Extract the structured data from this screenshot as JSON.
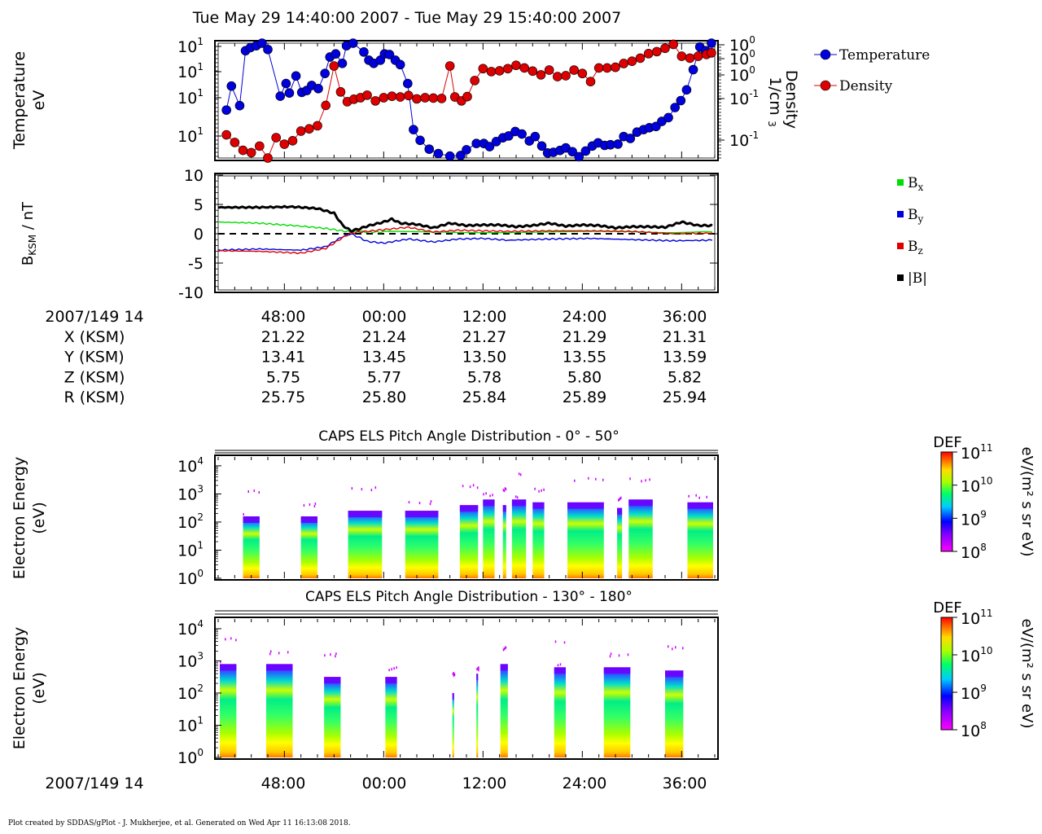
{
  "figure": {
    "title": "Tue May 29 14:40:00 2007 - Tue May 29 15:40:00 2007",
    "footer": "Plot created by SDDAS/gPlot - J. Mukherjee, et al.  Generated on Wed Apr 11 16:13:08 2018."
  },
  "time_axis": {
    "tick_labels": [
      "48:00",
      "00:00",
      "12:00",
      "24:00",
      "36:00"
    ],
    "start_label": "2007/149 14"
  },
  "ephemeris": {
    "rows": [
      {
        "label": "X (KSM)",
        "values": [
          "21.22",
          "21.24",
          "21.27",
          "21.29",
          "21.31"
        ]
      },
      {
        "label": "Y (KSM)",
        "values": [
          "13.41",
          "13.45",
          "13.50",
          "13.55",
          "13.59"
        ]
      },
      {
        "label": "Z (KSM)",
        "values": [
          "5.75",
          "5.77",
          "5.78",
          "5.80",
          "5.82"
        ]
      },
      {
        "label": "R (KSM)",
        "values": [
          "25.75",
          "25.80",
          "25.84",
          "25.89",
          "25.94"
        ]
      }
    ]
  },
  "chart_data": [
    {
      "type": "scatter",
      "title": "",
      "ylabel": [
        "Temperature",
        "eV"
      ],
      "y2label": [
        "Density",
        "1/cm",
        "3"
      ],
      "yscale": "log",
      "left_tick_labels": [
        "10",
        "10",
        "10",
        "10"
      ],
      "left_tick_exponents": [
        "1",
        "1",
        "1",
        "1"
      ],
      "right_tick_labels": [
        "10",
        "10",
        "10",
        "10",
        "10"
      ],
      "right_tick_exponents": [
        "0",
        "0",
        "0",
        "-1",
        "-1"
      ],
      "legend_position": "right",
      "series": [
        {
          "name": "Temperature",
          "color": "#0000dd",
          "x": [
            1.0,
            1.6,
            2.6,
            3.3,
            3.9,
            4.6,
            5.3,
            6.0,
            7.5,
            8.2,
            8.6,
            9.4,
            10.1,
            10.7,
            11.3,
            12.1,
            12.9,
            13.5,
            14.2,
            15.0,
            15.5,
            16.3,
            17.6,
            18.2,
            18.8,
            19.6,
            20.1,
            20.7,
            21.4,
            22.0,
            22.9,
            23.6,
            24.4,
            25.5,
            26.6,
            28.0,
            29.3,
            30.0,
            31.2,
            32.1,
            32.8,
            33.6,
            34.4,
            35.1,
            35.9,
            36.7,
            37.6,
            38.3,
            39.1,
            39.8,
            40.5,
            41.3,
            42.0,
            42.8,
            43.6,
            44.4,
            45.2,
            45.9,
            46.7,
            47.4,
            48.3,
            49.0,
            49.8,
            50.6,
            51.4,
            52.1,
            52.9,
            53.6,
            54.4,
            55.2,
            55.9,
            56.6,
            57.4,
            58.2,
            58.9,
            59.6
          ],
          "y": [
            76,
            114,
            83,
            170,
            175,
            178,
            182,
            172,
            98,
            118,
            103,
            130,
            104,
            107,
            115,
            110,
            134,
            160,
            165,
            150,
            178,
            182,
            168,
            155,
            150,
            155,
            165,
            164,
            155,
            148,
            118,
            45,
            28,
            14,
            7,
            3,
            4,
            13,
            23,
            23,
            18,
            26,
            32,
            35,
            42,
            38,
            27,
            34,
            19,
            8,
            9,
            12,
            16,
            10,
            2,
            11,
            19,
            24,
            20,
            21,
            22,
            34,
            31,
            41,
            45,
            48,
            50,
            58,
            64,
            80,
            91,
            108,
            140,
            176,
            170,
            182
          ]
        },
        {
          "name": "Density",
          "color": "#dd0000",
          "x": [
            1.0,
            2.0,
            3.0,
            4.0,
            5.0,
            6.0,
            7.0,
            8.0,
            9.0,
            10.0,
            11.0,
            12.0,
            13.0,
            14.0,
            14.8,
            15.6,
            16.4,
            17.2,
            18.0,
            19.0,
            20.0,
            21.0,
            22.0,
            23.0,
            24.0,
            25.0,
            26.0,
            27.0,
            28.0,
            28.6,
            29.4,
            30.1,
            31.0,
            32.0,
            33.0,
            34.0,
            35.0,
            36.0,
            37.0,
            38.0,
            39.0,
            40.0,
            41.0,
            42.0,
            43.0,
            44.0,
            45.0,
            46.0,
            47.0,
            48.0,
            49.0,
            50.0,
            51.0,
            52.0,
            53.0,
            54.0,
            55.0,
            56.0,
            57.0,
            58.0,
            59.0,
            59.6
          ],
          "y": [
            2.2,
            1.7,
            1.3,
            1.2,
            1.5,
            1.0,
            2.0,
            1.6,
            1.8,
            2.5,
            2.7,
            3.0,
            6.0,
            23.0,
            9.5,
            6.8,
            7.4,
            7.8,
            8.5,
            7.0,
            7.8,
            8.2,
            8.0,
            8.4,
            7.5,
            7.8,
            7.7,
            7.6,
            23.0,
            8.0,
            7.0,
            8.1,
            14.0,
            21.0,
            19.0,
            19.5,
            21.0,
            23.5,
            21.5,
            19.3,
            17.0,
            20.0,
            16.0,
            16.5,
            20.0,
            17.8,
            13.5,
            21.5,
            21.5,
            22.0,
            25.0,
            27.0,
            30.0,
            35.0,
            37.5,
            42.0,
            48.0,
            32.0,
            30.0,
            32.0,
            34.0,
            36.0
          ]
        }
      ]
    },
    {
      "type": "line",
      "title": "",
      "ylabel": "B",
      "ylabel_sub": "KSM",
      "ylabel_unit": " / nT",
      "ylim": [
        -10,
        10
      ],
      "ytick_labels": [
        "10",
        "5",
        "0",
        "-5",
        "-10"
      ],
      "legend_position": "right",
      "series": [
        {
          "name": "B",
          "sub": "x",
          "color": "#00dd00",
          "x": [
            0,
            5,
            10,
            13,
            15,
            16,
            17,
            18,
            20,
            30,
            40,
            50,
            59.7
          ],
          "y": [
            2.0,
            1.8,
            1.3,
            0.9,
            0.5,
            0.3,
            0.4,
            0.3,
            0.3,
            0.3,
            0.3,
            0.3,
            0.3
          ]
        },
        {
          "name": "B",
          "sub": "y",
          "color": "#0000dd",
          "x": [
            0,
            5,
            10,
            13,
            15,
            16,
            17,
            18,
            20,
            23,
            26,
            29,
            32,
            35,
            40,
            45,
            50,
            55,
            59.7
          ],
          "y": [
            -2.8,
            -2.6,
            -2.8,
            -2.2,
            -0.5,
            0.0,
            -0.6,
            -1.3,
            -1.6,
            -0.9,
            -1.4,
            -0.9,
            -0.8,
            -1.1,
            -0.9,
            -0.8,
            -1.0,
            -1.2,
            -1.1
          ]
        },
        {
          "name": "B",
          "sub": "z",
          "color": "#dd0000",
          "x": [
            0,
            5,
            10,
            13,
            15,
            16,
            17,
            18,
            20,
            23,
            26,
            29,
            32,
            35,
            40,
            45,
            50,
            55,
            59.7
          ],
          "y": [
            -2.9,
            -3.0,
            -3.3,
            -2.5,
            -0.7,
            0.1,
            0.3,
            0.4,
            0.7,
            1.1,
            0.3,
            0.6,
            0.5,
            0.4,
            0.5,
            0.5,
            0.4,
            0.0,
            0.1
          ]
        },
        {
          "name": "|B|",
          "sub": "",
          "color": "#000000",
          "x": [
            0,
            5,
            9,
            12,
            14,
            15,
            16,
            17,
            18,
            20,
            21,
            22,
            24,
            26,
            28,
            30,
            32,
            34,
            36,
            38,
            40,
            42,
            44,
            46,
            48,
            50,
            52,
            54,
            56,
            58,
            59.7
          ],
          "y": [
            4.5,
            4.5,
            4.6,
            4.3,
            3.5,
            1.5,
            0.5,
            0.8,
            1.3,
            2.0,
            2.5,
            1.8,
            1.6,
            1.0,
            1.8,
            1.4,
            1.5,
            1.5,
            1.2,
            1.4,
            1.8,
            1.3,
            1.5,
            1.4,
            1.0,
            1.2,
            1.2,
            1.1,
            2.0,
            1.4,
            1.4
          ]
        }
      ]
    },
    {
      "type": "heatmap",
      "title": "CAPS ELS Pitch Angle Distribution - 0° - 50°",
      "ylabel": [
        "Electron Energy",
        "(eV)"
      ],
      "yscale": "log",
      "ytick_exponents": [
        "4",
        "3",
        "2",
        "1",
        "0"
      ],
      "colorbar": {
        "label": "DEF",
        "unit": "eV/(m² s sr eV)",
        "scale": "log",
        "tick_exponents": [
          "11",
          "10",
          "9",
          "8"
        ]
      },
      "bursts": [
        {
          "x0": 3.0,
          "x1": 5.0,
          "top_log_eV": 2.2
        },
        {
          "x0": 10.0,
          "x1": 12.0,
          "top_log_eV": 2.2
        },
        {
          "x0": 15.7,
          "x1": 19.8,
          "top_log_eV": 2.4
        },
        {
          "x0": 22.6,
          "x1": 26.6,
          "top_log_eV": 2.4
        },
        {
          "x0": 29.2,
          "x1": 31.4,
          "top_log_eV": 2.6
        },
        {
          "x0": 32.0,
          "x1": 33.4,
          "top_log_eV": 2.8
        },
        {
          "x0": 34.4,
          "x1": 34.8,
          "top_log_eV": 2.6
        },
        {
          "x0": 35.5,
          "x1": 37.2,
          "top_log_eV": 2.8
        },
        {
          "x0": 38.0,
          "x1": 39.4,
          "top_log_eV": 2.7
        },
        {
          "x0": 42.2,
          "x1": 46.6,
          "top_log_eV": 2.7
        },
        {
          "x0": 48.2,
          "x1": 48.8,
          "top_log_eV": 2.5
        },
        {
          "x0": 49.6,
          "x1": 52.5,
          "top_log_eV": 2.8
        },
        {
          "x0": 56.7,
          "x1": 59.8,
          "top_log_eV": 2.7
        }
      ]
    },
    {
      "type": "heatmap",
      "title": "CAPS ELS Pitch Angle Distribution - 130° - 180°",
      "ylabel": [
        "Electron Energy",
        "(eV)"
      ],
      "yscale": "log",
      "ytick_exponents": [
        "4",
        "3",
        "2",
        "1",
        "0"
      ],
      "colorbar": {
        "label": "DEF",
        "unit": "eV/(m² s sr eV)",
        "scale": "log",
        "tick_exponents": [
          "11",
          "10",
          "9",
          "8"
        ]
      },
      "bursts": [
        {
          "x0": 0.2,
          "x1": 2.2,
          "top_log_eV": 2.9
        },
        {
          "x0": 5.8,
          "x1": 9.0,
          "top_log_eV": 2.9
        },
        {
          "x0": 12.8,
          "x1": 14.8,
          "top_log_eV": 2.5
        },
        {
          "x0": 20.2,
          "x1": 21.6,
          "top_log_eV": 2.5
        },
        {
          "x0": 28.3,
          "x1": 28.5,
          "top_log_eV": 2.0
        },
        {
          "x0": 31.2,
          "x1": 31.4,
          "top_log_eV": 2.6
        },
        {
          "x0": 34.1,
          "x1": 35.0,
          "top_log_eV": 2.9
        },
        {
          "x0": 40.6,
          "x1": 42.0,
          "top_log_eV": 2.8
        },
        {
          "x0": 46.6,
          "x1": 49.8,
          "top_log_eV": 2.8
        },
        {
          "x0": 54.0,
          "x1": 56.2,
          "top_log_eV": 2.7
        }
      ]
    }
  ]
}
